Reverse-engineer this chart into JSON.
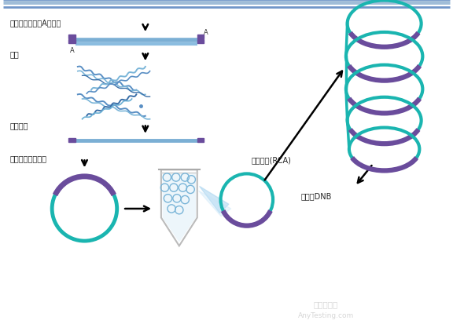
{
  "teal_color": "#1ab5b0",
  "purple_color": "#6a4c9c",
  "blue_color": "#7bafd4",
  "light_blue": "#aec9e0",
  "label1": "基因组打断，加A加接头",
  "label2": "杂交",
  "label3": "单链分离",
  "label4": "形成单链环状文库",
  "label5": "滚环复制(RCA)",
  "label6": "纳米球DNB",
  "watermark1": "壹岃检测网",
  "watermark2": "AnyTesting.com"
}
